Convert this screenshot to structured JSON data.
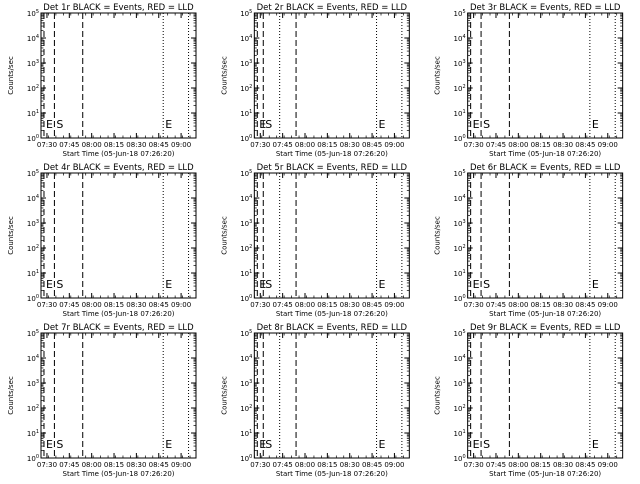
{
  "chart_data": [
    {
      "type": "line",
      "title": "Det 1r BLACK = Events, RED = LLD",
      "xlabel": "Start Time (05-Jun-18 07:26:20)",
      "ylabel": "Counts/sec",
      "x_tick_labels": [
        "07:30",
        "07:45",
        "08:00",
        "08:15",
        "08:30",
        "08:45",
        "09:00"
      ],
      "y_tick_labels": [
        "10^0",
        "10^1",
        "10^2",
        "10^3",
        "10^4",
        "10^5"
      ],
      "ylim": [
        1,
        100000
      ],
      "yscale": "log",
      "series": [],
      "markers": [
        {
          "label": "E",
          "time": "07:28",
          "style": "dashed"
        },
        {
          "label": "S",
          "time": "07:35",
          "style": "dashed"
        },
        {
          "label": "",
          "time": "07:54",
          "style": "dashed"
        },
        {
          "label": "E",
          "time": "08:48",
          "style": "dotted"
        }
      ],
      "extra_lines": [
        {
          "time": "09:05",
          "style": "dotted"
        }
      ]
    },
    {
      "type": "line",
      "title": "Det 2r BLACK = Events, RED = LLD",
      "xlabel": "Start Time (05-Jun-18 07:26:20)",
      "ylabel": "Counts/sec",
      "x_tick_labels": [
        "07:30",
        "07:45",
        "08:00",
        "08:15",
        "08:30",
        "08:45",
        "09:00"
      ],
      "y_tick_labels": [
        "10^0",
        "10^1",
        "10^2",
        "10^3",
        "10^4",
        "10^5"
      ],
      "ylim": [
        1,
        100000
      ],
      "yscale": "log",
      "series": [],
      "markers": [
        {
          "label": "E",
          "time": "07:28",
          "style": "dashed"
        },
        {
          "label": "S",
          "time": "07:32",
          "style": "dashed"
        },
        {
          "label": "",
          "time": "07:43",
          "style": "dotted"
        },
        {
          "label": "",
          "time": "07:54",
          "style": "dashed"
        },
        {
          "label": "E",
          "time": "08:48",
          "style": "dotted"
        }
      ],
      "extra_lines": [
        {
          "time": "09:05",
          "style": "dotted"
        }
      ]
    },
    {
      "type": "line",
      "title": "Det 3r BLACK = Events, RED = LLD",
      "xlabel": "Start Time (05-Jun-18 07:26:20)",
      "ylabel": "Counts/sec",
      "x_tick_labels": [
        "07:30",
        "07:45",
        "08:00",
        "08:15",
        "08:30",
        "08:45",
        "09:00"
      ],
      "y_tick_labels": [
        "10^0",
        "10^1",
        "10^2",
        "10^3",
        "10^4",
        "10^5"
      ],
      "ylim": [
        1,
        100000
      ],
      "yscale": "log",
      "series": [],
      "markers": [
        {
          "label": "E",
          "time": "07:28",
          "style": "dashed"
        },
        {
          "label": "S",
          "time": "07:35",
          "style": "dashed"
        },
        {
          "label": "",
          "time": "07:54",
          "style": "dashed"
        },
        {
          "label": "E",
          "time": "08:48",
          "style": "dotted"
        }
      ],
      "extra_lines": [
        {
          "time": "09:05",
          "style": "dotted"
        }
      ]
    },
    {
      "type": "line",
      "title": "Det 4r BLACK = Events, RED = LLD",
      "xlabel": "Start Time (05-Jun-18 07:26:20)",
      "ylabel": "Counts/sec",
      "x_tick_labels": [
        "07:30",
        "07:45",
        "08:00",
        "08:15",
        "08:30",
        "08:45",
        "09:00"
      ],
      "y_tick_labels": [
        "10^0",
        "10^1",
        "10^2",
        "10^3",
        "10^4",
        "10^5"
      ],
      "ylim": [
        1,
        100000
      ],
      "yscale": "log",
      "series": [],
      "markers": [
        {
          "label": "E",
          "time": "07:28",
          "style": "dashed"
        },
        {
          "label": "S",
          "time": "07:35",
          "style": "dashed"
        },
        {
          "label": "",
          "time": "07:54",
          "style": "dashed"
        },
        {
          "label": "E",
          "time": "08:48",
          "style": "dotted"
        }
      ],
      "extra_lines": [
        {
          "time": "09:05",
          "style": "dotted"
        }
      ]
    },
    {
      "type": "line",
      "title": "Det 5r BLACK = Events, RED = LLD",
      "xlabel": "Start Time (05-Jun-18 07:26:20)",
      "ylabel": "Counts/sec",
      "x_tick_labels": [
        "07:30",
        "07:45",
        "08:00",
        "08:15",
        "08:30",
        "08:45",
        "09:00"
      ],
      "y_tick_labels": [
        "10^0",
        "10^1",
        "10^2",
        "10^3",
        "10^4",
        "10^5"
      ],
      "ylim": [
        1,
        100000
      ],
      "yscale": "log",
      "series": [],
      "markers": [
        {
          "label": "E",
          "time": "07:28",
          "style": "dashed"
        },
        {
          "label": "S",
          "time": "07:32",
          "style": "dashed"
        },
        {
          "label": "",
          "time": "07:43",
          "style": "dotted"
        },
        {
          "label": "",
          "time": "07:54",
          "style": "dashed"
        },
        {
          "label": "E",
          "time": "08:48",
          "style": "dotted"
        }
      ],
      "extra_lines": [
        {
          "time": "09:05",
          "style": "dotted"
        }
      ]
    },
    {
      "type": "line",
      "title": "Det 6r BLACK = Events, RED = LLD",
      "xlabel": "Start Time (05-Jun-18 07:26:20)",
      "ylabel": "Counts/sec",
      "x_tick_labels": [
        "07:30",
        "07:45",
        "08:00",
        "08:15",
        "08:30",
        "08:45",
        "09:00"
      ],
      "y_tick_labels": [
        "10^0",
        "10^1",
        "10^2",
        "10^3",
        "10^4",
        "10^5"
      ],
      "ylim": [
        1,
        100000
      ],
      "yscale": "log",
      "series": [],
      "markers": [
        {
          "label": "E",
          "time": "07:28",
          "style": "dashed"
        },
        {
          "label": "S",
          "time": "07:35",
          "style": "dashed"
        },
        {
          "label": "",
          "time": "07:54",
          "style": "dashed"
        },
        {
          "label": "E",
          "time": "08:48",
          "style": "dotted"
        }
      ],
      "extra_lines": [
        {
          "time": "09:05",
          "style": "dotted"
        }
      ]
    },
    {
      "type": "line",
      "title": "Det 7r BLACK = Events, RED = LLD",
      "xlabel": "Start Time (05-Jun-18 07:26:20)",
      "ylabel": "Counts/sec",
      "x_tick_labels": [
        "07:30",
        "07:45",
        "08:00",
        "08:15",
        "08:30",
        "08:45",
        "09:00"
      ],
      "y_tick_labels": [
        "10^0",
        "10^1",
        "10^2",
        "10^3",
        "10^4",
        "10^5"
      ],
      "ylim": [
        1,
        100000
      ],
      "yscale": "log",
      "series": [],
      "markers": [
        {
          "label": "E",
          "time": "07:28",
          "style": "dashed"
        },
        {
          "label": "S",
          "time": "07:35",
          "style": "dashed"
        },
        {
          "label": "",
          "time": "07:54",
          "style": "dashed"
        },
        {
          "label": "E",
          "time": "08:48",
          "style": "dotted"
        }
      ],
      "extra_lines": [
        {
          "time": "09:05",
          "style": "dotted"
        }
      ]
    },
    {
      "type": "line",
      "title": "Det 8r BLACK = Events, RED = LLD",
      "xlabel": "Start Time (05-Jun-18 07:26:20)",
      "ylabel": "Counts/sec",
      "x_tick_labels": [
        "07:30",
        "07:45",
        "08:00",
        "08:15",
        "08:30",
        "08:45",
        "09:00"
      ],
      "y_tick_labels": [
        "10^0",
        "10^1",
        "10^2",
        "10^3",
        "10^4",
        "10^5"
      ],
      "ylim": [
        1,
        100000
      ],
      "yscale": "log",
      "series": [],
      "markers": [
        {
          "label": "E",
          "time": "07:28",
          "style": "dashed"
        },
        {
          "label": "S",
          "time": "07:32",
          "style": "dashed"
        },
        {
          "label": "",
          "time": "07:43",
          "style": "dotted"
        },
        {
          "label": "",
          "time": "07:54",
          "style": "dashed"
        },
        {
          "label": "E",
          "time": "08:48",
          "style": "dotted"
        }
      ],
      "extra_lines": [
        {
          "time": "09:05",
          "style": "dotted"
        }
      ]
    },
    {
      "type": "line",
      "title": "Det 9r BLACK = Events, RED = LLD",
      "xlabel": "Start Time (05-Jun-18 07:26:20)",
      "ylabel": "Counts/sec",
      "x_tick_labels": [
        "07:30",
        "07:45",
        "08:00",
        "08:15",
        "08:30",
        "08:45",
        "09:00"
      ],
      "y_tick_labels": [
        "10^0",
        "10^1",
        "10^2",
        "10^3",
        "10^4",
        "10^5"
      ],
      "ylim": [
        1,
        100000
      ],
      "yscale": "log",
      "series": [],
      "markers": [
        {
          "label": "E",
          "time": "07:28",
          "style": "dashed"
        },
        {
          "label": "S",
          "time": "07:35",
          "style": "dashed"
        },
        {
          "label": "",
          "time": "07:54",
          "style": "dashed"
        },
        {
          "label": "E",
          "time": "08:48",
          "style": "dotted"
        }
      ],
      "extra_lines": [
        {
          "time": "09:05",
          "style": "dotted"
        }
      ]
    }
  ]
}
